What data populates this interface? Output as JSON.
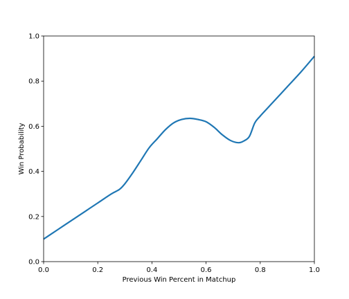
{
  "chart_data": {
    "type": "line",
    "title": "",
    "xlabel": "Previous Win Percent in Matchup",
    "ylabel": "Win Probability",
    "xlim": [
      0.0,
      1.0
    ],
    "ylim": [
      0.0,
      1.0
    ],
    "x_ticks": [
      0.0,
      0.2,
      0.4,
      0.6,
      0.8,
      1.0
    ],
    "x_tick_labels": [
      "0.0",
      "0.2",
      "0.4",
      "0.6",
      "0.8",
      "1.0"
    ],
    "y_ticks": [
      0.0,
      0.2,
      0.4,
      0.6,
      0.8,
      1.0
    ],
    "y_tick_labels": [
      "0.0",
      "0.2",
      "0.4",
      "0.6",
      "0.8",
      "1.0"
    ],
    "grid": false,
    "legend": false,
    "series": [
      {
        "color": "#1f77b4",
        "x": [
          0.0,
          0.05,
          0.1,
          0.15,
          0.2,
          0.25,
          0.28,
          0.3,
          0.33,
          0.36,
          0.39,
          0.42,
          0.45,
          0.48,
          0.51,
          0.54,
          0.57,
          0.6,
          0.63,
          0.66,
          0.69,
          0.72,
          0.74,
          0.76,
          0.78,
          0.8,
          0.85,
          0.9,
          0.95,
          1.0
        ],
        "y": [
          0.1,
          0.14,
          0.18,
          0.22,
          0.26,
          0.3,
          0.32,
          0.345,
          0.395,
          0.45,
          0.505,
          0.545,
          0.585,
          0.615,
          0.63,
          0.635,
          0.63,
          0.62,
          0.595,
          0.562,
          0.537,
          0.527,
          0.535,
          0.555,
          0.615,
          0.645,
          0.71,
          0.775,
          0.84,
          0.91
        ]
      }
    ]
  }
}
